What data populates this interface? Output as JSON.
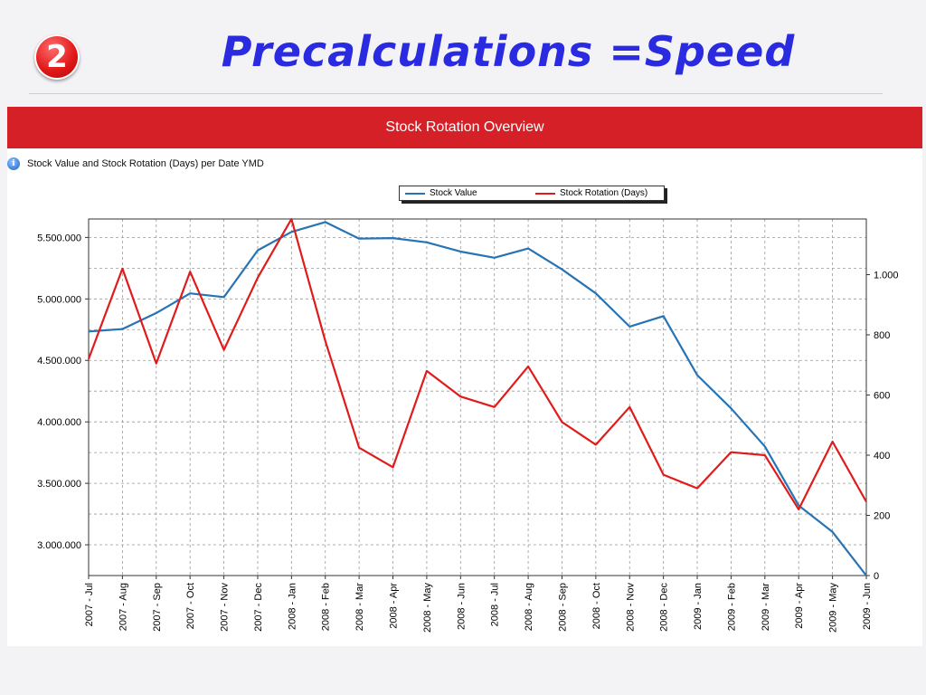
{
  "slide": {
    "badge_number": "2",
    "title": "Precalculations =Speed"
  },
  "panel": {
    "banner_title": "Stock Rotation Overview",
    "subtitle": "Stock Value and Stock Rotation (Days) per Date YMD",
    "info_icon": "info-icon"
  },
  "chart_data": {
    "type": "line",
    "title": "Stock Value and Stock Rotation (Days) per Date YMD",
    "categories": [
      "2007 - Jul",
      "2007 - Aug",
      "2007 - Sep",
      "2007 - Oct",
      "2007 - Nov",
      "2007 - Dec",
      "2008 - Jan",
      "2008 - Feb",
      "2008 - Mar",
      "2008 - Apr",
      "2008 - May",
      "2008 - Jun",
      "2008 - Jul",
      "2008 - Aug",
      "2008 - Sep",
      "2008 - Oct",
      "2008 - Nov",
      "2008 - Dec",
      "2009 - Jan",
      "2009 - Feb",
      "2009 - Mar",
      "2009 - Apr",
      "2009 - May",
      "2009 - Jun"
    ],
    "series": [
      {
        "name": "Stock Value",
        "axis": "left",
        "color": "#2673b5",
        "values": [
          4735000,
          4755000,
          4885000,
          5045000,
          5015000,
          5395000,
          5545000,
          5625000,
          5490000,
          5495000,
          5460000,
          5385000,
          5335000,
          5410000,
          5240000,
          5045000,
          4775000,
          4860000,
          4380000,
          4110000,
          3800000,
          3320000,
          3105000,
          2750000
        ]
      },
      {
        "name": "Stock Rotation (Days)",
        "axis": "right",
        "color": "#e01b1b",
        "values": [
          720,
          1020,
          705,
          1010,
          750,
          990,
          1185,
          780,
          425,
          360,
          680,
          595,
          560,
          695,
          510,
          435,
          560,
          335,
          290,
          410,
          400,
          220,
          445,
          245
        ]
      }
    ],
    "y_left": {
      "min": 2750000,
      "max": 5650000,
      "ticks": [
        "3.000.000",
        "3.500.000",
        "4.000.000",
        "4.500.000",
        "5.000.000",
        "5.500.000"
      ],
      "tick_values": [
        3000000,
        3500000,
        4000000,
        4500000,
        5000000,
        5500000
      ]
    },
    "y_right": {
      "min": 0,
      "max": 1185,
      "ticks": [
        "0",
        "200",
        "400",
        "600",
        "800",
        "1.000"
      ],
      "tick_values": [
        0,
        200,
        400,
        600,
        800,
        1000
      ]
    },
    "grid": true,
    "legend_position": "top-center"
  }
}
